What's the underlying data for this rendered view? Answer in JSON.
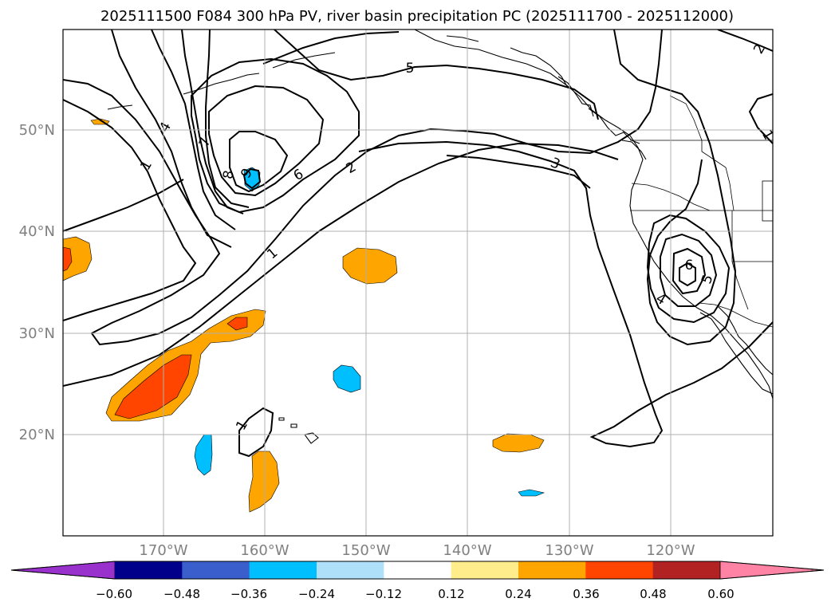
{
  "title": "2025111500 F084 300 hPa PV, river basin precipitation PC (2025111700 - 2025112000)",
  "lat_labels": [
    "50°N",
    "40°N",
    "30°N",
    "20°N"
  ],
  "lon_labels": [
    "170°W",
    "160°W",
    "150°W",
    "140°W",
    "130°W",
    "120°W"
  ],
  "colorbar": {
    "colors": [
      "#9932cc",
      "#00008b",
      "#3a5fcd",
      "#00bfff",
      "#afe0fa",
      "#ffffff",
      "#ffec8b",
      "#ffa500",
      "#ff4500",
      "#b22222",
      "#ff83a5"
    ],
    "tick_labels": [
      "−0.60",
      "−0.48",
      "−0.36",
      "−0.24",
      "−0.12",
      "0.12",
      "0.24",
      "0.36",
      "0.48",
      "0.60"
    ]
  },
  "contour_labels": [
    "1",
    "4",
    "7",
    "8",
    "9",
    "6",
    "5",
    "2",
    "3",
    "1",
    "6",
    "5",
    "4",
    "1",
    "2"
  ],
  "map_extent": {
    "lon_min": -180,
    "lon_max": -110,
    "lat_min": 10,
    "lat_max": 60,
    "lat_grid": [
      50,
      40,
      30,
      20
    ],
    "lon_grid": [
      -170,
      -160,
      -150,
      -140,
      -130,
      -120
    ]
  },
  "colors": {
    "positive_fill": "#ffa500",
    "strong_positive_fill": "#ff4500",
    "negative_fill": "#00bfff",
    "grid": "#b0b0b0",
    "axis_label": "#808080"
  }
}
